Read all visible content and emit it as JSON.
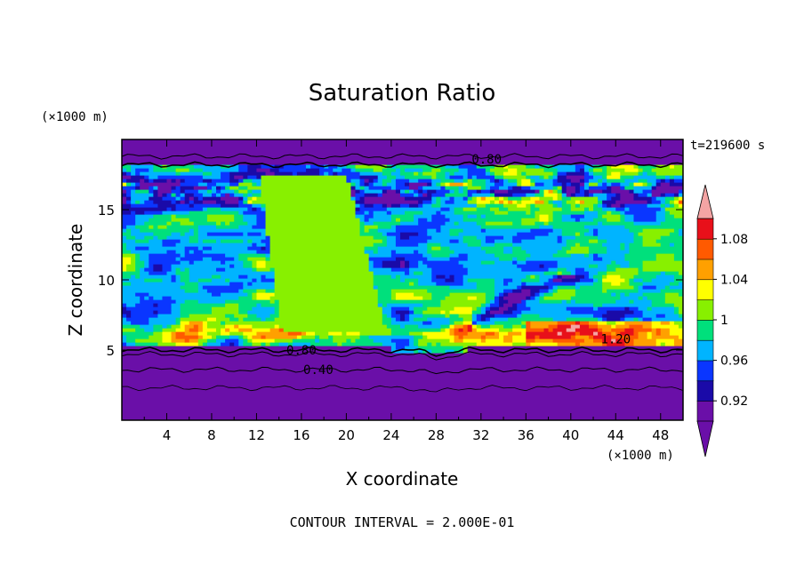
{
  "chart_data": {
    "type": "heatmap",
    "title": "Saturation Ratio",
    "xlabel": "X coordinate",
    "ylabel": "Z coordinate",
    "x_unit": "(×1000 m)",
    "y_unit": "(×1000 m)",
    "time_label": "t=219600 s",
    "footer": "CONTOUR INTERVAL = 2.000E-01",
    "xlim": [
      0,
      50
    ],
    "ylim": [
      0,
      20
    ],
    "x_ticks": [
      "4",
      "8",
      "12",
      "16",
      "20",
      "24",
      "28",
      "32",
      "36",
      "40",
      "44",
      "48"
    ],
    "x_tick_values": [
      4,
      8,
      12,
      16,
      20,
      24,
      28,
      32,
      36,
      40,
      44,
      48
    ],
    "y_ticks": [
      "5",
      "10",
      "15"
    ],
    "y_tick_values": [
      5,
      10,
      15
    ],
    "contour_labels": [
      {
        "text": "0.80",
        "x": 32.5,
        "z": 18.6
      },
      {
        "text": "0.80",
        "x": 16,
        "z": 5.0
      },
      {
        "text": "0.40",
        "x": 17.5,
        "z": 3.6
      },
      {
        "text": "1.20",
        "x": 44,
        "z": 5.8
      }
    ],
    "colorbar": {
      "labels": [
        "1.08",
        "1.04",
        "1",
        "0.96",
        "0.92"
      ],
      "label_values": [
        1.08,
        1.04,
        1.0,
        0.96,
        0.92
      ],
      "levels": [
        0.9,
        0.92,
        0.94,
        0.96,
        0.98,
        1.0,
        1.02,
        1.04,
        1.06,
        1.08,
        1.1
      ],
      "colors": [
        "#6a0fa8",
        "#1a0aa8",
        "#0a36ff",
        "#00b4ff",
        "#00e07c",
        "#88f000",
        "#ffff00",
        "#ffa000",
        "#ff5a00",
        "#e8101a",
        "#f4a4a4"
      ],
      "under_color": "#6a0fa8",
      "over_color": "#f4a4a4"
    }
  }
}
